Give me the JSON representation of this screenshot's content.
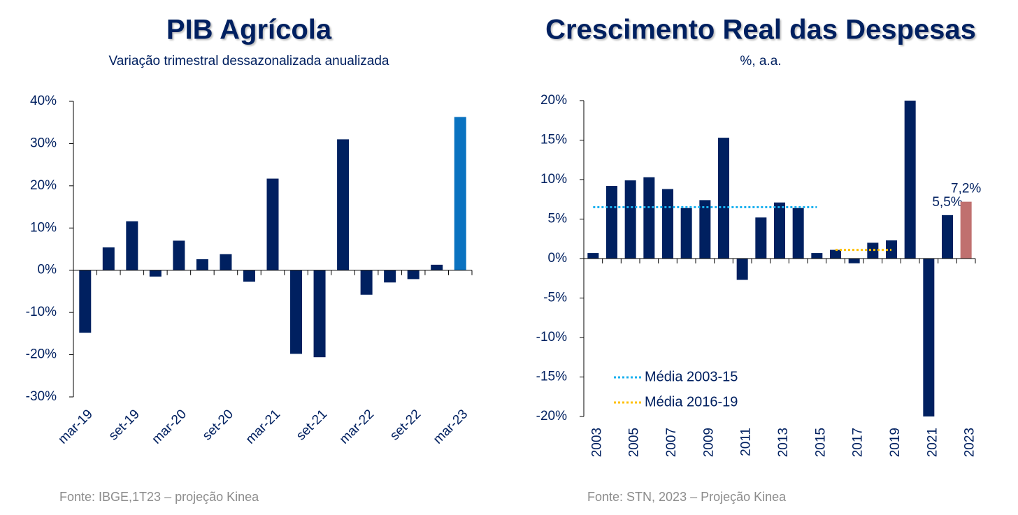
{
  "chart_data": [
    {
      "type": "bar",
      "title": "PIB Agrícola",
      "subtitle": "Variação trimestral dessazonalizada anualizada",
      "categories": [
        "mar-19",
        null,
        "set-19",
        null,
        "mar-20",
        null,
        "set-20",
        null,
        "mar-21",
        null,
        "set-21",
        null,
        "mar-22",
        null,
        "set-22",
        null,
        "mar-23"
      ],
      "values": [
        -14.8,
        5.4,
        11.6,
        -1.5,
        7.0,
        2.6,
        3.8,
        -2.7,
        21.7,
        -19.8,
        -20.6,
        31.0,
        -5.8,
        -2.9,
        -2.1,
        1.3,
        36.3
      ],
      "colors": [
        "#002060",
        "#002060",
        "#002060",
        "#002060",
        "#002060",
        "#002060",
        "#002060",
        "#002060",
        "#002060",
        "#002060",
        "#002060",
        "#002060",
        "#002060",
        "#002060",
        "#002060",
        "#002060",
        "#0a72c0"
      ],
      "ylim": [
        -30,
        40
      ],
      "yticks": [
        {
          "value": -30,
          "label": "-30%"
        },
        {
          "value": -20,
          "label": "-20%"
        },
        {
          "value": -10,
          "label": "-10%"
        },
        {
          "value": 0,
          "label": "0%"
        },
        {
          "value": 10,
          "label": "10%"
        },
        {
          "value": 20,
          "label": "20%"
        },
        {
          "value": 30,
          "label": "30%"
        },
        {
          "value": 40,
          "label": "40%"
        }
      ],
      "source": "Fonte: IBGE,1T23 – projeção Kinea"
    },
    {
      "type": "bar",
      "title": "Crescimento Real das Despesas",
      "subtitle": "%, a.a.",
      "categories": [
        "2003",
        null,
        "2005",
        null,
        "2007",
        null,
        "2009",
        null,
        "2011",
        null,
        "2013",
        null,
        "2015",
        null,
        "2017",
        null,
        "2019",
        null,
        "2021",
        null,
        "2023"
      ],
      "values": [
        0.7,
        9.2,
        9.9,
        10.3,
        8.8,
        6.4,
        7.4,
        15.3,
        -2.7,
        5.2,
        7.1,
        6.4,
        0.7,
        1.1,
        -0.6,
        2.0,
        2.3,
        20,
        -20,
        5.5,
        7.2
      ],
      "value_labels": [
        null,
        null,
        null,
        null,
        null,
        null,
        null,
        null,
        null,
        null,
        null,
        null,
        null,
        null,
        null,
        null,
        null,
        null,
        null,
        "5,5%",
        "7,2%"
      ],
      "colors": [
        "#002060",
        "#002060",
        "#002060",
        "#002060",
        "#002060",
        "#002060",
        "#002060",
        "#002060",
        "#002060",
        "#002060",
        "#002060",
        "#002060",
        "#002060",
        "#002060",
        "#002060",
        "#002060",
        "#002060",
        "#002060",
        "#002060",
        "#002060",
        "#c0706f"
      ],
      "ylim": [
        -20,
        20
      ],
      "yticks": [
        {
          "value": -20,
          "label": "-20%"
        },
        {
          "value": -15,
          "label": "-15%"
        },
        {
          "value": -10,
          "label": "-10%"
        },
        {
          "value": -5,
          "label": "-5%"
        },
        {
          "value": 0,
          "label": "0%"
        },
        {
          "value": 5,
          "label": "5%"
        },
        {
          "value": 10,
          "label": "10%"
        },
        {
          "value": 15,
          "label": "15%"
        },
        {
          "value": 20,
          "label": "20%"
        }
      ],
      "reference_lines": [
        {
          "name": "Média 2003-15",
          "value": 6.5,
          "x_range": [
            2003,
            2015
          ],
          "color": "#1ab0ef"
        },
        {
          "name": "Média 2016-19",
          "value": 1.1,
          "x_range": [
            2016,
            2019
          ],
          "color": "#ffc000"
        }
      ],
      "source": "Fonte: STN, 2023 – Projeção Kinea"
    }
  ]
}
